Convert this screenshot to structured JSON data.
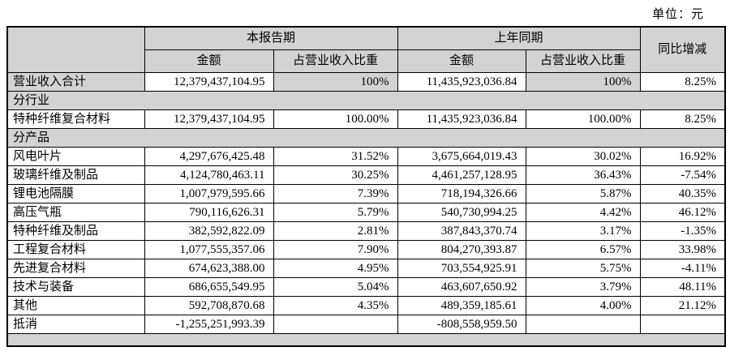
{
  "unit_label": "单位：元",
  "colors": {
    "header_bg": "#d3d3d3",
    "section_bg": "#d3d3d3",
    "border": "#000000",
    "text": "#000000",
    "page_bg": "#ffffff"
  },
  "table": {
    "header": {
      "current_period": "本报告期",
      "prior_period": "上年同期",
      "amount_label": "金额",
      "pct_label": "占营业收入比重",
      "yoy_label": "同比增减"
    },
    "rows": [
      {
        "type": "data",
        "label": "营业收入合计",
        "amount1": "12,379,437,104.95",
        "pct1": "100%",
        "amount2": "11,435,923,036.84",
        "pct2": "100%",
        "yoy": "8.25%",
        "shaded": true
      },
      {
        "type": "section",
        "label": "分行业"
      },
      {
        "type": "data",
        "label": "特种纤维复合材料",
        "amount1": "12,379,437,104.95",
        "pct1": "100.00%",
        "amount2": "11,435,923,036.84",
        "pct2": "100.00%",
        "yoy": "8.25%"
      },
      {
        "type": "section",
        "label": "分产品"
      },
      {
        "type": "data",
        "label": "风电叶片",
        "amount1": "4,297,676,425.48",
        "pct1": "31.52%",
        "amount2": "3,675,664,019.43",
        "pct2": "30.02%",
        "yoy": "16.92%"
      },
      {
        "type": "data",
        "label": "玻璃纤维及制品",
        "amount1": "4,124,780,463.11",
        "pct1": "30.25%",
        "amount2": "4,461,257,128.95",
        "pct2": "36.43%",
        "yoy": "-7.54%"
      },
      {
        "type": "data",
        "label": "锂电池隔膜",
        "amount1": "1,007,979,595.66",
        "pct1": "7.39%",
        "amount2": "718,194,326.66",
        "pct2": "5.87%",
        "yoy": "40.35%"
      },
      {
        "type": "data",
        "label": "高压气瓶",
        "amount1": "790,116,626.31",
        "pct1": "5.79%",
        "amount2": "540,730,994.25",
        "pct2": "4.42%",
        "yoy": "46.12%"
      },
      {
        "type": "data",
        "label": "特种纤维及制品",
        "amount1": "382,592,822.09",
        "pct1": "2.81%",
        "amount2": "387,843,370.74",
        "pct2": "3.17%",
        "yoy": "-1.35%"
      },
      {
        "type": "data",
        "label": "工程复合材料",
        "amount1": "1,077,555,357.06",
        "pct1": "7.90%",
        "amount2": "804,270,393.87",
        "pct2": "6.57%",
        "yoy": "33.98%"
      },
      {
        "type": "data",
        "label": "先进复合材料",
        "amount1": "674,623,388.00",
        "pct1": "4.95%",
        "amount2": "703,554,925.91",
        "pct2": "5.75%",
        "yoy": "-4.11%"
      },
      {
        "type": "data",
        "label": "技术与装备",
        "amount1": "686,655,549.95",
        "pct1": "5.04%",
        "amount2": "463,607,650.92",
        "pct2": "3.79%",
        "yoy": "48.11%"
      },
      {
        "type": "data",
        "label": "其他",
        "amount1": "592,708,870.68",
        "pct1": "4.35%",
        "amount2": "489,359,185.61",
        "pct2": "4.00%",
        "yoy": "21.12%"
      },
      {
        "type": "data",
        "label": "抵消",
        "amount1": "-1,255,251,993.39",
        "pct1": "",
        "amount2": "-808,558,959.50",
        "pct2": "",
        "yoy": ""
      },
      {
        "type": "section",
        "label": "",
        "truncated": true
      }
    ]
  }
}
